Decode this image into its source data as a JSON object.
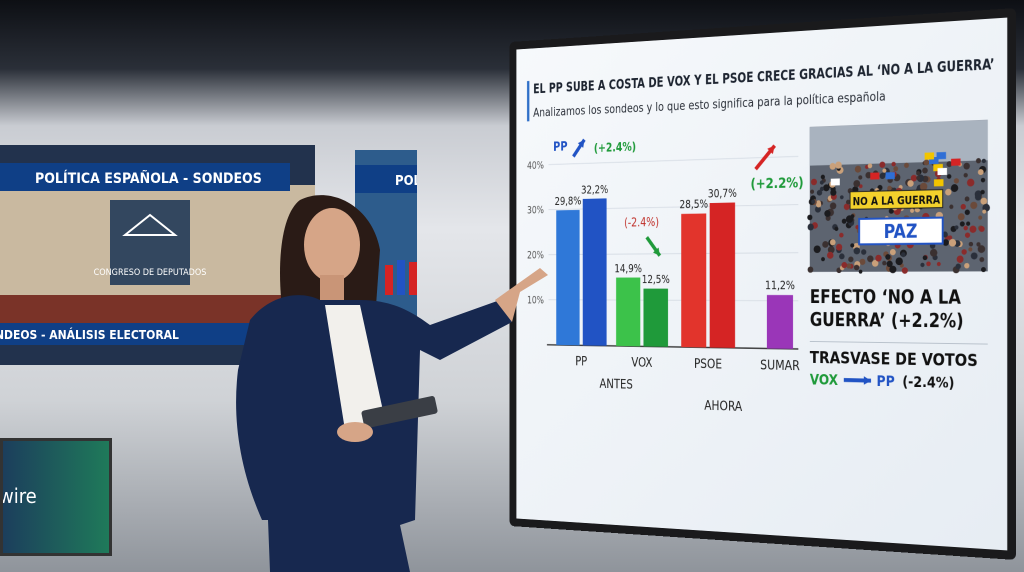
{
  "background": {
    "left_screen_title": "POLÍTICA ESPAÑOLA - SONDEOS",
    "left_screen_logo": "CONGRESO DE DEPUTADOS",
    "left_screen_ticker": "SONDEOS - ANÁLISIS ELECTORAL",
    "center_screen_title": "POL",
    "lower_screen_text": "wire"
  },
  "chart_data": {
    "type": "bar",
    "title": "EL PP SUBE A COSTA DE VOX Y EL PSOE CRECE GRACIAS AL ‘NO A LA GUERRA’",
    "subtitle": "Analizamos los sondeos y lo que esto significa para la política española",
    "categories": [
      "PP",
      "VOX",
      "PSOE",
      "SUMAR"
    ],
    "series": [
      {
        "name": "ANTES",
        "colors": [
          "#2f78d8",
          "#3cc24a",
          "#e2342c",
          null
        ],
        "values": [
          29.8,
          14.9,
          28.5,
          null
        ],
        "value_labels": [
          "29,8%",
          "14,9%",
          "28,5%",
          null
        ]
      },
      {
        "name": "AHORA",
        "colors": [
          "#2153c4",
          "#1f9a3a",
          "#d52424",
          "#9a36b8"
        ],
        "values": [
          32.2,
          12.5,
          30.7,
          11.2
        ],
        "value_labels": [
          "32,2%",
          "12,5%",
          "30,7%",
          "11,2%"
        ]
      }
    ],
    "ylim": [
      0,
      40
    ],
    "yticks": [
      {
        "value": 40,
        "label": "40%"
      },
      {
        "value": 30,
        "label": "30%"
      },
      {
        "value": 20,
        "label": "20%"
      },
      {
        "value": 10,
        "label": "10%"
      }
    ],
    "grid": true,
    "annotations": [
      {
        "text": "PP"
      },
      {
        "text": "(+2.4%)"
      },
      {
        "text": "(-2.4%)"
      },
      {
        "text": "(+2.2%)"
      }
    ]
  },
  "side_panel": {
    "photo_signs": [
      "NO A LA GUERRA",
      "PAZ"
    ],
    "effect_lines": [
      "EFECTO ‘NO A LA",
      "GUERRA’ (+2.2%)"
    ],
    "transfer_title": "TRASVASE DE VOTOS",
    "transfer_from": "VOX",
    "transfer_to": "PP",
    "transfer_change": "(-2.4%)"
  }
}
